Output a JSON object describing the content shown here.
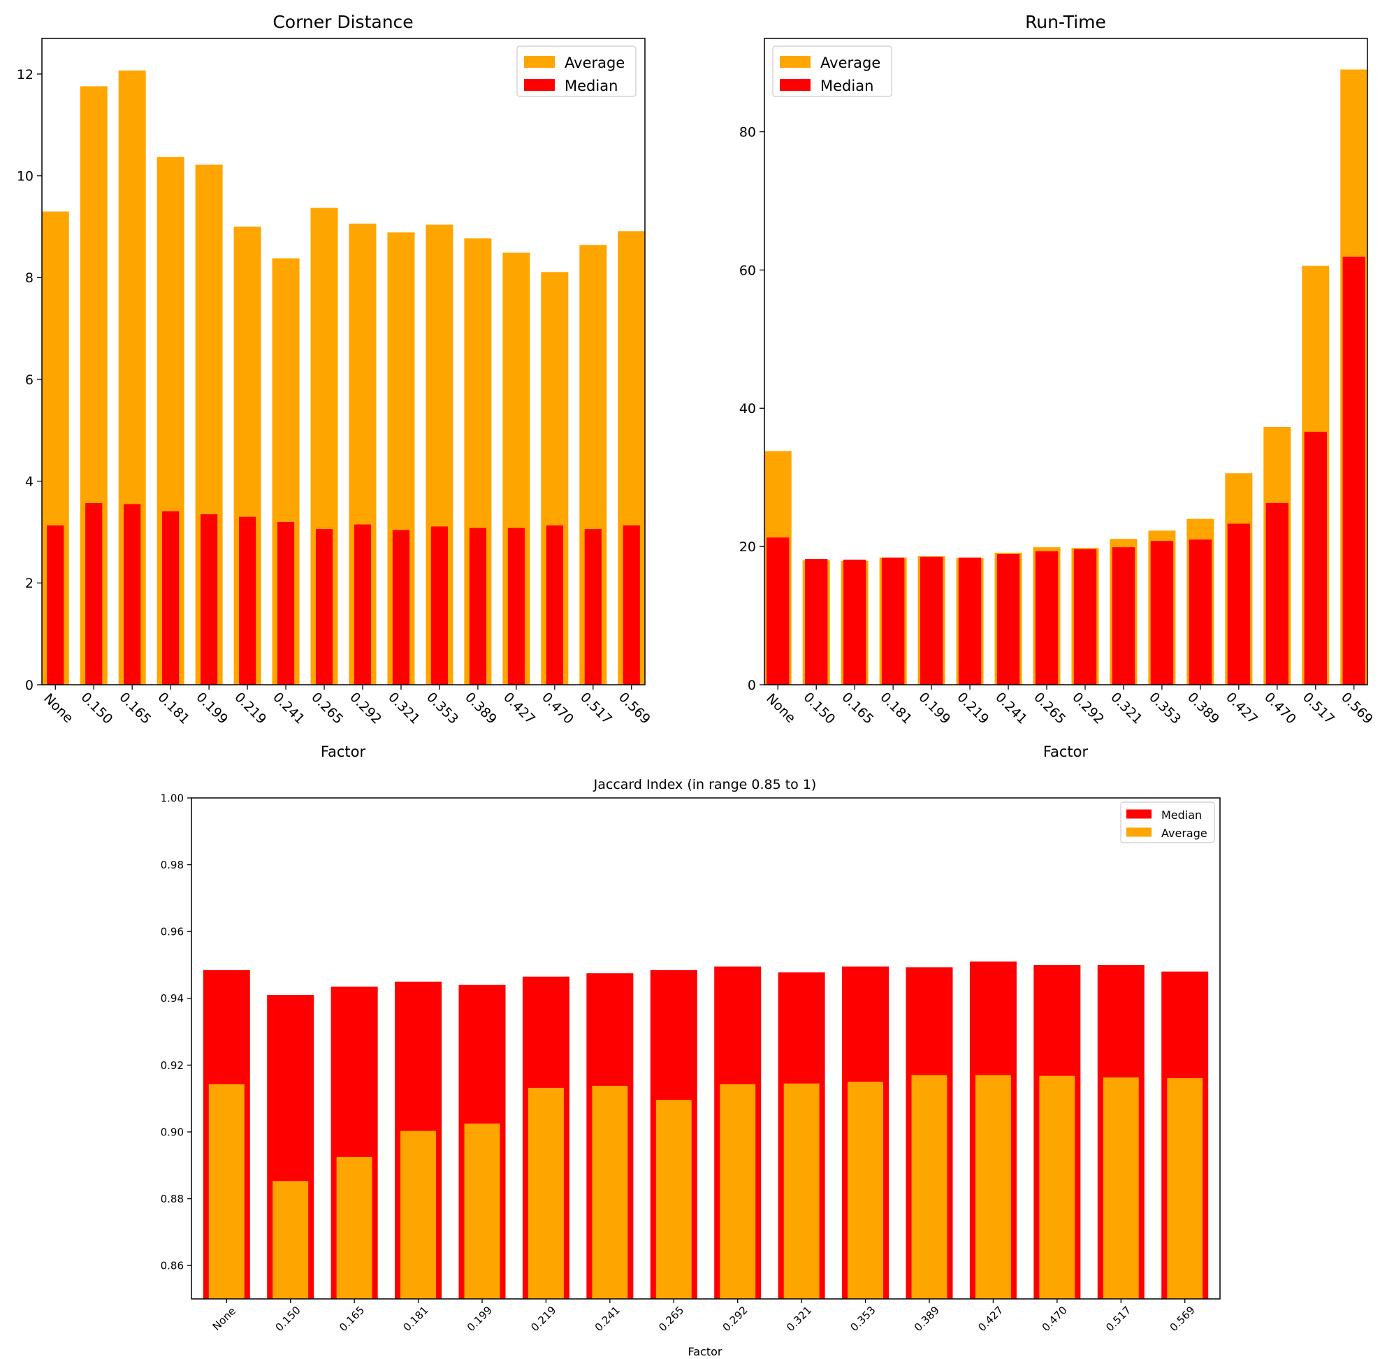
{
  "chart_data": [
    {
      "type": "bar",
      "title": "Corner Distance",
      "xlabel": "Factor",
      "ylabel": "",
      "ylim": [
        0,
        12.7
      ],
      "yticks": [
        0,
        2,
        4,
        6,
        8,
        10,
        12
      ],
      "tick_rotation": 45,
      "legend_position": "top-right",
      "categories": [
        "None",
        "0.150",
        "0.165",
        "0.181",
        "0.199",
        "0.219",
        "0.241",
        "0.265",
        "0.292",
        "0.321",
        "0.353",
        "0.389",
        "0.427",
        "0.470",
        "0.517",
        "0.569"
      ],
      "series": [
        {
          "name": "Average",
          "color": "#ffa500",
          "values": [
            9.3,
            11.76,
            12.07,
            10.37,
            10.22,
            9.0,
            8.38,
            9.37,
            9.06,
            8.89,
            9.04,
            8.77,
            8.49,
            8.11,
            8.64,
            8.91
          ]
        },
        {
          "name": "Median",
          "color": "#ff0000",
          "values": [
            3.13,
            3.57,
            3.55,
            3.41,
            3.35,
            3.3,
            3.2,
            3.06,
            3.15,
            3.04,
            3.11,
            3.08,
            3.08,
            3.13,
            3.06,
            3.13
          ]
        }
      ],
      "legend": [
        "Average",
        "Median"
      ]
    },
    {
      "type": "bar",
      "title": "Run-Time",
      "xlabel": "Factor",
      "ylabel": "",
      "ylim": [
        0,
        93.5
      ],
      "yticks": [
        0,
        20,
        40,
        60,
        80
      ],
      "tick_rotation": 45,
      "legend_position": "top-left",
      "categories": [
        "None",
        "0.150",
        "0.165",
        "0.181",
        "0.199",
        "0.219",
        "0.241",
        "0.265",
        "0.292",
        "0.321",
        "0.353",
        "0.389",
        "0.427",
        "0.470",
        "0.517",
        "0.569"
      ],
      "series": [
        {
          "name": "Average",
          "color": "#ffa500",
          "values": [
            33.8,
            18.0,
            17.9,
            18.4,
            18.6,
            18.3,
            19.1,
            19.9,
            19.8,
            21.1,
            22.3,
            24.0,
            30.6,
            37.3,
            60.6,
            89.0
          ]
        },
        {
          "name": "Median",
          "color": "#ff0000",
          "values": [
            21.3,
            18.2,
            18.1,
            18.4,
            18.5,
            18.4,
            18.9,
            19.3,
            19.6,
            19.9,
            20.8,
            21.0,
            23.3,
            26.3,
            36.6,
            61.9
          ]
        }
      ],
      "legend": [
        "Average",
        "Median"
      ]
    },
    {
      "type": "bar",
      "title": "Jaccard Index (in range 0.85 to 1)",
      "xlabel": "Factor",
      "ylabel": "",
      "ylim": [
        0.85,
        1.0
      ],
      "yticks": [
        "0.86",
        "0.88",
        "0.90",
        "0.92",
        "0.94",
        "0.96",
        "0.98",
        "1.00"
      ],
      "tick_rotation": -45,
      "legend_position": "top-right",
      "categories": [
        "None",
        "0.150",
        "0.165",
        "0.181",
        "0.199",
        "0.219",
        "0.241",
        "0.265",
        "0.292",
        "0.321",
        "0.353",
        "0.389",
        "0.427",
        "0.470",
        "0.517",
        "0.569"
      ],
      "series": [
        {
          "name": "Median",
          "color": "#ff0000",
          "values": [
            0.9485,
            0.941,
            0.9435,
            0.945,
            0.944,
            0.9465,
            0.9475,
            0.9485,
            0.9495,
            0.9478,
            0.9495,
            0.9493,
            0.951,
            0.95,
            0.95,
            0.948
          ]
        },
        {
          "name": "Average",
          "color": "#ffa500",
          "values": [
            0.9143,
            0.8853,
            0.8925,
            0.9003,
            0.9025,
            0.9132,
            0.9138,
            0.9096,
            0.9143,
            0.9145,
            0.915,
            0.917,
            0.917,
            0.9168,
            0.9163,
            0.9161
          ]
        }
      ],
      "legend": [
        "Median",
        "Average"
      ]
    }
  ]
}
